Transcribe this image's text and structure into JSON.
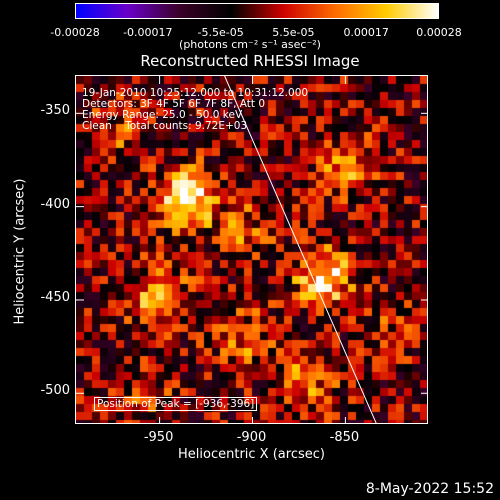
{
  "chart_data": {
    "type": "heatmap",
    "title": "Reconstructed RHESSI Image",
    "xlabel": "Heliocentric X (arcsec)",
    "ylabel": "Heliocentric Y (arcsec)",
    "xlim": [
      -995,
      -805
    ],
    "ylim": [
      -517,
      -330
    ],
    "xticks": [
      "-950",
      "-900",
      "-850"
    ],
    "xtick_values": [
      -950,
      -900,
      -850
    ],
    "yticks": [
      "-350",
      "-400",
      "-450",
      "-500"
    ],
    "ytick_values": [
      -350,
      -400,
      -450,
      -500
    ],
    "colorbar": {
      "label": "(photons cm⁻² s⁻¹ asec⁻²)",
      "ticks": [
        "-0.00028",
        "-0.00017",
        "-5.5e-05",
        "5.5e-05",
        "0.00017",
        "0.00028"
      ],
      "range": [
        -0.00028,
        0.00028
      ],
      "colors": [
        "#0000ff",
        "#6a00c8",
        "#3a0028",
        "#000000",
        "#cc0000",
        "#ff6a00",
        "#ffcc00",
        "#ffffff"
      ]
    },
    "annotations": [
      "19-Jan-2010 10:25:12.000 to 10:31:12.000",
      "Detectors: 3F 4F 5F 6F 7F 8F, Att 0",
      "Energy Range: 25.0 - 50.0 keV",
      "Clean    Total counts: 9.72E+03"
    ],
    "peak_label": "Position of Peak = [-936,-396]",
    "peak": [
      -936,
      -396
    ],
    "limb_line": {
      "x": [
        -915,
        -833
      ],
      "y": [
        -330,
        -517
      ]
    },
    "hotspots": [
      {
        "x": -936,
        "y": -396,
        "value": 0.00028
      },
      {
        "x": -862,
        "y": -438,
        "value": 0.00025
      },
      {
        "x": -950,
        "y": -448,
        "value": 0.00019
      },
      {
        "x": -848,
        "y": -378,
        "value": 0.00016
      },
      {
        "x": -872,
        "y": -495,
        "value": 0.00015
      },
      {
        "x": -905,
        "y": -470,
        "value": 0.00013
      },
      {
        "x": -905,
        "y": -412,
        "value": 0.00012
      },
      {
        "x": -972,
        "y": -360,
        "value": 0.0001
      },
      {
        "x": -960,
        "y": -498,
        "value": 9e-05
      },
      {
        "x": -822,
        "y": -465,
        "value": 8e-05
      }
    ]
  },
  "timestamp": "8-May-2022 15:52"
}
